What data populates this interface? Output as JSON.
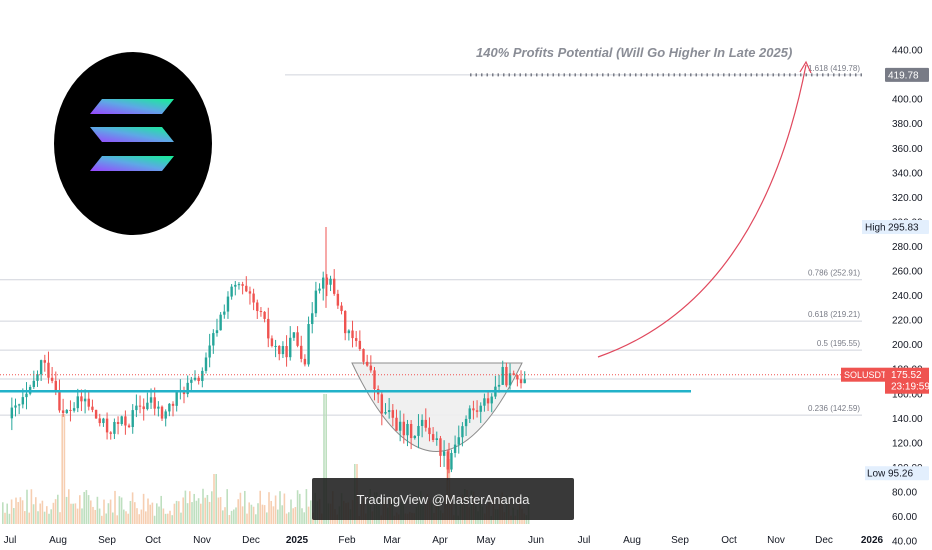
{
  "chart_data": {
    "type": "candlestick",
    "symbol": "SOLUSDT",
    "annotation": "140% Profits Potential (Will Go Higher In Late 2025)",
    "watermark": "TradingView @MasterAnanda",
    "last_price": "175.52",
    "countdown": "23:19:59",
    "high_label": "High",
    "high_value": "295.83",
    "low_label": "Low",
    "low_value": "95.26",
    "target_value": "419.78",
    "y_axis": {
      "ticks": [
        "440.00",
        "420.00",
        "400.00",
        "380.00",
        "360.00",
        "340.00",
        "320.00",
        "300.00",
        "280.00",
        "260.00",
        "240.00",
        "220.00",
        "200.00",
        "180.00",
        "160.00",
        "140.00",
        "120.00",
        "100.00",
        "80.00",
        "60.00",
        "40.00"
      ],
      "range": [
        30,
        450
      ]
    },
    "x_axis": {
      "ticks": [
        "Jul",
        "Aug",
        "Sep",
        "Oct",
        "Nov",
        "Dec",
        "2025",
        "Feb",
        "Mar",
        "Apr",
        "May",
        "Jun",
        "Jul",
        "Aug",
        "Sep",
        "Oct",
        "Nov",
        "Dec",
        "2026"
      ]
    },
    "fib_levels": [
      {
        "label": "1.618 (419.78)",
        "value": 419.78
      },
      {
        "label": "0.786 (252.91)",
        "value": 252.91
      },
      {
        "label": "0.618 (219.21)",
        "value": 219.21
      },
      {
        "label": "0.5 (195.55)",
        "value": 195.55
      },
      {
        "label": "0.3",
        "value": 172
      },
      {
        "label": "0.236 (142.59)",
        "value": 142.59
      }
    ],
    "support_level": 162,
    "price_path": [
      [
        "2024-07-01",
        140
      ],
      [
        "2024-07-08",
        150
      ],
      [
        "2024-07-15",
        160
      ],
      [
        "2024-07-22",
        185
      ],
      [
        "2024-07-29",
        175
      ],
      [
        "2024-08-05",
        142
      ],
      [
        "2024-08-12",
        150
      ],
      [
        "2024-08-19",
        155
      ],
      [
        "2024-08-26",
        140
      ],
      [
        "2024-09-02",
        130
      ],
      [
        "2024-09-09",
        135
      ],
      [
        "2024-09-16",
        138
      ],
      [
        "2024-09-23",
        150
      ],
      [
        "2024-09-30",
        153
      ],
      [
        "2024-10-07",
        142
      ],
      [
        "2024-10-14",
        152
      ],
      [
        "2024-10-21",
        165
      ],
      [
        "2024-10-28",
        168
      ],
      [
        "2024-11-04",
        185
      ],
      [
        "2024-11-11",
        215
      ],
      [
        "2024-11-18",
        240
      ],
      [
        "2024-11-25",
        248
      ],
      [
        "2024-12-02",
        235
      ],
      [
        "2024-12-09",
        222
      ],
      [
        "2024-12-16",
        200
      ],
      [
        "2024-12-23",
        192
      ],
      [
        "2024-12-30",
        206
      ],
      [
        "2025-01-06",
        190
      ],
      [
        "2025-01-13",
        250
      ],
      [
        "2025-01-20",
        255
      ],
      [
        "2025-01-27",
        235
      ],
      [
        "2025-02-03",
        205
      ],
      [
        "2025-02-10",
        198
      ],
      [
        "2025-02-17",
        175
      ],
      [
        "2025-02-24",
        145
      ],
      [
        "2025-03-03",
        140
      ],
      [
        "2025-03-10",
        128
      ],
      [
        "2025-03-17",
        130
      ],
      [
        "2025-03-24",
        136
      ],
      [
        "2025-03-31",
        120
      ],
      [
        "2025-04-07",
        105
      ],
      [
        "2025-04-14",
        128
      ],
      [
        "2025-04-21",
        145
      ],
      [
        "2025-04-28",
        148
      ],
      [
        "2025-05-05",
        160
      ],
      [
        "2025-05-12",
        175
      ],
      [
        "2025-05-19",
        170
      ],
      [
        "2025-05-26",
        175.52
      ]
    ]
  },
  "logo": {
    "name": "Solana logo",
    "colors": [
      "#14f195",
      "#9945ff"
    ]
  }
}
